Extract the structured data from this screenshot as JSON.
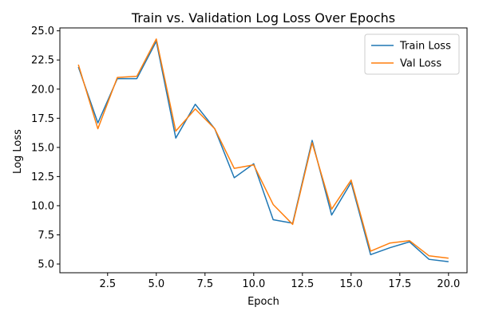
{
  "chart_data": {
    "type": "line",
    "title": "Train vs. Validation Log Loss Over Epochs",
    "xlabel": "Epoch",
    "ylabel": "Log Loss",
    "xlim": [
      0.05,
      20.95
    ],
    "ylim": [
      4.25,
      25.25
    ],
    "xticks": [
      2.5,
      5.0,
      7.5,
      10.0,
      12.5,
      15.0,
      17.5,
      20.0
    ],
    "xtick_labels": [
      "2.5",
      "5.0",
      "7.5",
      "10.0",
      "12.5",
      "15.0",
      "17.5",
      "20.0"
    ],
    "yticks": [
      5.0,
      7.5,
      10.0,
      12.5,
      15.0,
      17.5,
      20.0,
      22.5,
      25.0
    ],
    "ytick_labels": [
      "5.0",
      "7.5",
      "10.0",
      "12.5",
      "15.0",
      "17.5",
      "20.0",
      "22.5",
      "25.0"
    ],
    "grid": false,
    "legend_position": "top-right",
    "x": [
      1,
      2,
      3,
      4,
      5,
      6,
      7,
      8,
      9,
      10,
      11,
      12,
      13,
      14,
      15,
      16,
      17,
      18,
      19,
      20
    ],
    "series": [
      {
        "name": "Train Loss",
        "color": "#1f77b4",
        "values": [
          21.9,
          17.1,
          20.9,
          20.9,
          24.1,
          15.8,
          18.7,
          16.6,
          12.4,
          13.6,
          8.8,
          8.5,
          15.6,
          9.2,
          12.0,
          5.8,
          6.4,
          6.9,
          5.4,
          5.2
        ]
      },
      {
        "name": "Val Loss",
        "color": "#ff7f0e",
        "values": [
          22.1,
          16.6,
          21.0,
          21.1,
          24.3,
          16.4,
          18.3,
          16.6,
          13.2,
          13.5,
          10.1,
          8.4,
          15.4,
          9.7,
          12.2,
          6.1,
          6.8,
          7.0,
          5.7,
          5.5
        ]
      }
    ]
  }
}
